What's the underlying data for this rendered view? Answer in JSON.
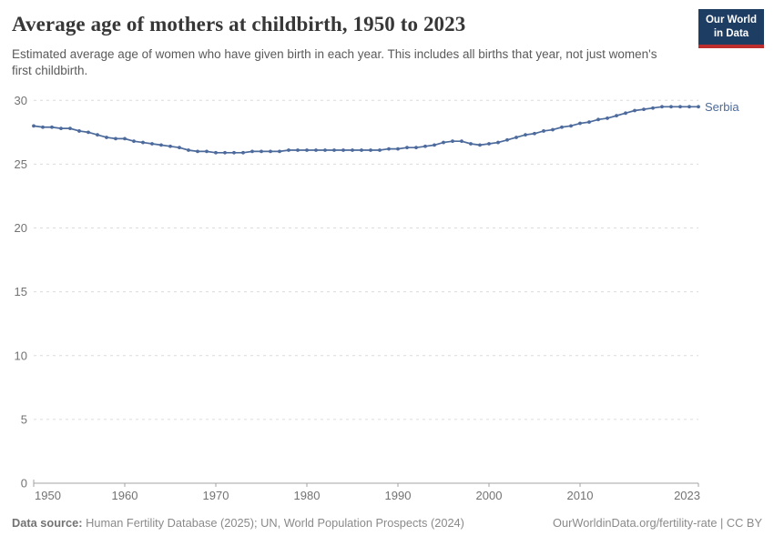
{
  "header": {
    "title": "Average age of mothers at childbirth, 1950 to 2023",
    "subtitle": "Estimated average age of women who have given birth in each year. This includes all births that year, not just women's first childbirth.",
    "logo": {
      "line1": "Our World",
      "line2": "in Data"
    }
  },
  "chart_data": {
    "type": "line",
    "title": "Average age of mothers at childbirth, 1950 to 2023",
    "xlabel": "",
    "ylabel": "",
    "ylim": [
      0,
      30
    ],
    "y_ticks": [
      0,
      5,
      10,
      15,
      20,
      25,
      30
    ],
    "x_ticks": [
      1950,
      1960,
      1970,
      1980,
      1990,
      2000,
      2010,
      2023
    ],
    "grid": "dashed-horizontal",
    "legend_position": "end-of-line",
    "x": [
      1950,
      1951,
      1952,
      1953,
      1954,
      1955,
      1956,
      1957,
      1958,
      1959,
      1960,
      1961,
      1962,
      1963,
      1964,
      1965,
      1966,
      1967,
      1968,
      1969,
      1970,
      1971,
      1972,
      1973,
      1974,
      1975,
      1976,
      1977,
      1978,
      1979,
      1980,
      1981,
      1982,
      1983,
      1984,
      1985,
      1986,
      1987,
      1988,
      1989,
      1990,
      1991,
      1992,
      1993,
      1994,
      1995,
      1996,
      1997,
      1998,
      1999,
      2000,
      2001,
      2002,
      2003,
      2004,
      2005,
      2006,
      2007,
      2008,
      2009,
      2010,
      2011,
      2012,
      2013,
      2014,
      2015,
      2016,
      2017,
      2018,
      2019,
      2020,
      2021,
      2022,
      2023
    ],
    "series": [
      {
        "name": "Serbia",
        "color": "#4c6a9c",
        "values": [
          28.0,
          27.9,
          27.9,
          27.8,
          27.8,
          27.6,
          27.5,
          27.3,
          27.1,
          27.0,
          27.0,
          26.8,
          26.7,
          26.6,
          26.5,
          26.4,
          26.3,
          26.1,
          26.0,
          26.0,
          25.9,
          25.9,
          25.9,
          25.9,
          26.0,
          26.0,
          26.0,
          26.0,
          26.1,
          26.1,
          26.1,
          26.1,
          26.1,
          26.1,
          26.1,
          26.1,
          26.1,
          26.1,
          26.1,
          26.2,
          26.2,
          26.3,
          26.3,
          26.4,
          26.5,
          26.7,
          26.8,
          26.8,
          26.6,
          26.5,
          26.6,
          26.7,
          26.9,
          27.1,
          27.3,
          27.4,
          27.6,
          27.7,
          27.9,
          28.0,
          28.2,
          28.3,
          28.5,
          28.6,
          28.8,
          29.0,
          29.2,
          29.3,
          29.4,
          29.5,
          29.5,
          29.5,
          29.5,
          29.5
        ]
      }
    ]
  },
  "footer": {
    "source_label": "Data source:",
    "source_text": " Human Fertility Database (2025); UN, World Population Prospects (2024)",
    "right_text": "OurWorldinData.org/fertility-rate | CC BY"
  },
  "colors": {
    "accent": "#4c6a9c",
    "logo_bg": "#1d3d63",
    "logo_bar": "#be2d2d",
    "grid": "#dcdcdc",
    "axis_text": "#737373"
  }
}
